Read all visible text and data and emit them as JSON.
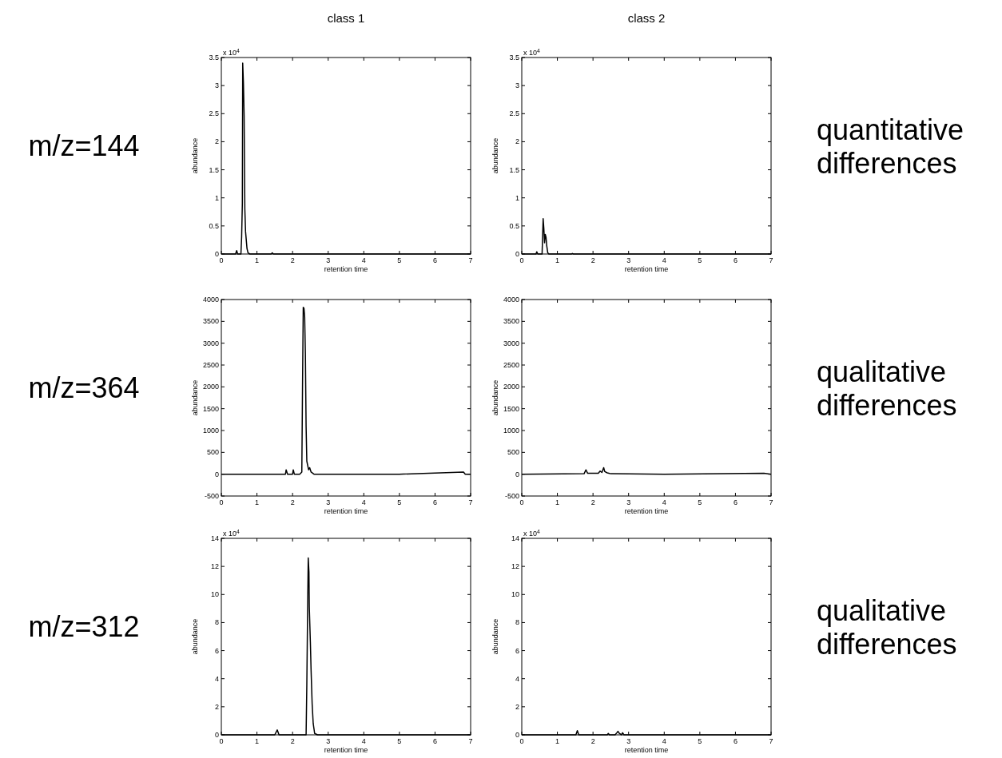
{
  "chart_data": [
    {
      "type": "line",
      "title": "class 1",
      "xlabel": "retention time",
      "ylabel": "abundance",
      "annotations": [
        "m/z=144",
        "x 10$^{4}$"
      ],
      "xlim": [
        0,
        7
      ],
      "xticks": [
        0,
        1,
        2,
        3,
        4,
        5,
        6,
        7
      ],
      "ylim": [
        0,
        3.5
      ],
      "yticks": [
        0,
        0.5,
        1,
        1.5,
        2,
        2.5,
        3,
        3.5
      ],
      "series": [
        {
          "color": "#000000",
          "x": [
            0,
            0.4,
            0.43,
            0.46,
            0.55,
            0.57,
            0.59,
            0.6,
            0.62,
            0.64,
            0.66,
            0.68,
            0.7,
            0.72,
            0.75,
            0.8,
            1.4,
            1.43,
            1.46,
            7
          ],
          "values": [
            0,
            0,
            0.06,
            0,
            0,
            0.3,
            0.9,
            3.4,
            3.05,
            2.45,
            0.8,
            0.4,
            0.25,
            0.1,
            0.02,
            0,
            0,
            0.02,
            0,
            0
          ]
        }
      ]
    },
    {
      "type": "line",
      "title": "class 2",
      "xlabel": "retention time",
      "ylabel": "abundance",
      "annotations": [
        "quantitative differences",
        "x 10$^{4}$"
      ],
      "xlim": [
        0,
        7
      ],
      "xticks": [
        0,
        1,
        2,
        3,
        4,
        5,
        6,
        7
      ],
      "ylim": [
        0,
        3.5
      ],
      "yticks": [
        0,
        0.5,
        1,
        1.5,
        2,
        2.5,
        3,
        3.5
      ],
      "series": [
        {
          "color": "#000000",
          "x": [
            0,
            0.4,
            0.42,
            0.45,
            0.57,
            0.6,
            0.62,
            0.64,
            0.66,
            0.68,
            0.7,
            0.73,
            0.76,
            1.4,
            1.42,
            1.45,
            7
          ],
          "values": [
            0,
            0,
            0.04,
            0,
            0,
            0.63,
            0.45,
            0.2,
            0.35,
            0.3,
            0.15,
            0.02,
            0,
            0,
            0.01,
            0,
            0
          ]
        }
      ]
    },
    {
      "type": "line",
      "xlabel": "retention time",
      "ylabel": "abundance",
      "annotations": [
        "m/z=364"
      ],
      "xlim": [
        0,
        7
      ],
      "xticks": [
        0,
        1,
        2,
        3,
        4,
        5,
        6,
        7
      ],
      "ylim": [
        -500,
        4000
      ],
      "yticks": [
        -500,
        0,
        500,
        1000,
        1500,
        2000,
        2500,
        3000,
        3500,
        4000
      ],
      "series": [
        {
          "color": "#000000",
          "x": [
            0,
            1,
            1.8,
            1.82,
            1.86,
            2,
            2.02,
            2.05,
            2.2,
            2.26,
            2.28,
            2.3,
            2.32,
            2.34,
            2.36,
            2.38,
            2.4,
            2.45,
            2.48,
            2.52,
            2.6,
            3,
            5,
            6.8,
            6.85,
            7
          ],
          "values": [
            0,
            0,
            0,
            100,
            0,
            0,
            100,
            0,
            0,
            50,
            2050,
            3820,
            3800,
            3600,
            2750,
            1100,
            300,
            100,
            150,
            50,
            0,
            0,
            0,
            50,
            0,
            0
          ]
        }
      ]
    },
    {
      "type": "line",
      "xlabel": "retention time",
      "ylabel": "abundance",
      "annotations": [
        "qualitative differences"
      ],
      "xlim": [
        0,
        7
      ],
      "xticks": [
        0,
        1,
        2,
        3,
        4,
        5,
        6,
        7
      ],
      "ylim": [
        -500,
        4000
      ],
      "yticks": [
        -500,
        0,
        500,
        1000,
        1500,
        2000,
        2500,
        3000,
        3500,
        4000
      ],
      "series": [
        {
          "color": "#000000",
          "x": [
            0,
            1.75,
            1.8,
            1.85,
            2.15,
            2.2,
            2.25,
            2.3,
            2.33,
            2.4,
            2.5,
            4,
            6.8,
            7
          ],
          "values": [
            0,
            10,
            100,
            20,
            20,
            70,
            40,
            150,
            60,
            30,
            10,
            0,
            20,
            0
          ]
        }
      ]
    },
    {
      "type": "line",
      "xlabel": "retention time",
      "ylabel": "abundance",
      "annotations": [
        "m/z=312",
        "x 10$^{4}$"
      ],
      "xlim": [
        0,
        7
      ],
      "xticks": [
        0,
        1,
        2,
        3,
        4,
        5,
        6,
        7
      ],
      "ylim": [
        0,
        14
      ],
      "yticks": [
        0,
        2,
        4,
        6,
        8,
        10,
        12,
        14
      ],
      "series": [
        {
          "color": "#000000",
          "x": [
            0,
            1.5,
            1.57,
            1.62,
            2.38,
            2.4,
            2.42,
            2.44,
            2.46,
            2.47,
            2.5,
            2.52,
            2.55,
            2.58,
            2.62,
            2.7,
            7
          ],
          "values": [
            0,
            0,
            0.35,
            0,
            0,
            3.5,
            8.3,
            12.6,
            11.6,
            9.1,
            6.6,
            4.6,
            2.2,
            0.8,
            0.1,
            0,
            0
          ]
        }
      ]
    },
    {
      "type": "line",
      "xlabel": "retention time",
      "ylabel": "abundance",
      "annotations": [
        "qualitative differences",
        "x 10$^{4}$"
      ],
      "xlim": [
        0,
        7
      ],
      "xticks": [
        0,
        1,
        2,
        3,
        4,
        5,
        6,
        7
      ],
      "ylim": [
        0,
        14
      ],
      "yticks": [
        0,
        2,
        4,
        6,
        8,
        10,
        12,
        14
      ],
      "series": [
        {
          "color": "#000000",
          "x": [
            0,
            1.52,
            1.56,
            1.6,
            2.4,
            2.43,
            2.46,
            2.62,
            2.67,
            2.7,
            2.74,
            2.8,
            2.83,
            2.87,
            7
          ],
          "values": [
            0,
            0,
            0.3,
            0,
            0,
            0.1,
            0,
            0,
            0.15,
            0.25,
            0.1,
            0,
            0.15,
            0,
            0
          ]
        }
      ]
    }
  ]
}
